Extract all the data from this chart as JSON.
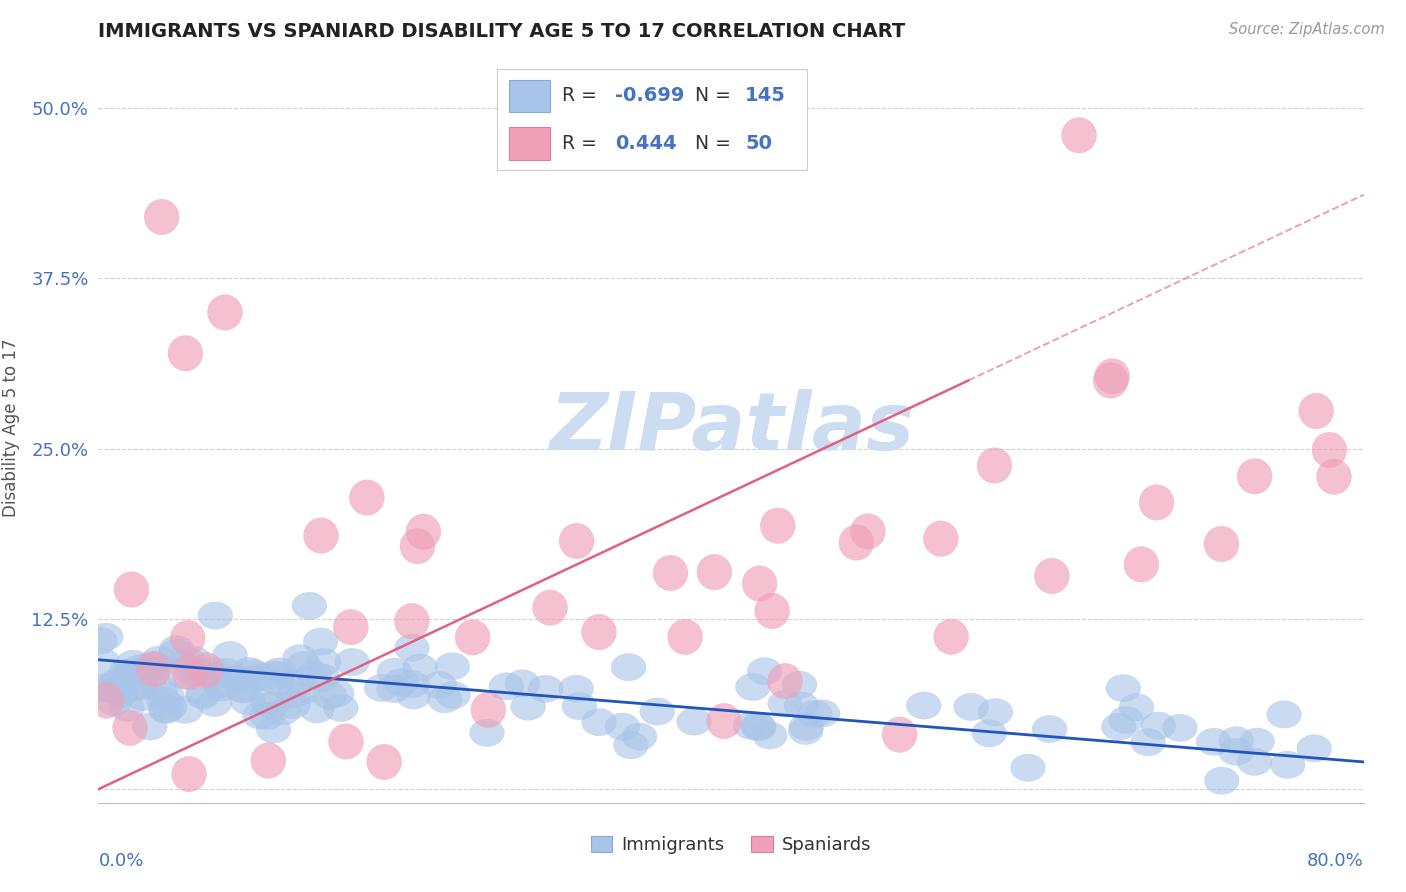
{
  "title": "IMMIGRANTS VS SPANIARD DISABILITY AGE 5 TO 17 CORRELATION CHART",
  "source": "Source: ZipAtlas.com",
  "ylabel": "Disability Age 5 to 17",
  "ytick_vals": [
    0.0,
    0.125,
    0.25,
    0.375,
    0.5
  ],
  "ytick_labels": [
    "",
    "12.5%",
    "25.0%",
    "37.5%",
    "50.0%"
  ],
  "xlim": [
    0.0,
    0.8
  ],
  "ylim": [
    -0.01,
    0.54
  ],
  "imm_color_scatter": "#a8c4e8",
  "spa_color_scatter": "#f0a0b8",
  "imm_line_color": "#2255bb",
  "spa_line_color": "#e06080",
  "watermark_color": "#c8daf0",
  "background_color": "#ffffff",
  "grid_color": "#cccccc",
  "title_color": "#222222",
  "legend_text_color": "#4472c4",
  "R_imm": -0.699,
  "N_imm": 145,
  "R_spa": 0.444,
  "N_spa": 50,
  "imm_line_start_y": 0.095,
  "imm_line_end_y": 0.02,
  "spa_line_start_y": 0.0,
  "spa_line_end_y": 0.3
}
